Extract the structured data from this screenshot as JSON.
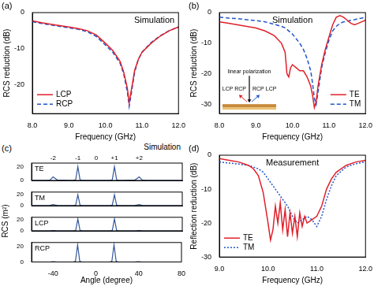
{
  "chart_data": [
    {
      "panel": "(a)",
      "title": "Simulation",
      "type": "line",
      "xlabel": "Frequency (GHz)",
      "ylabel": "RCS reduction (dB)",
      "x": [
        8.0,
        8.25,
        8.5,
        8.75,
        9.0,
        9.25,
        9.5,
        9.75,
        10.0,
        10.2,
        10.4,
        10.5,
        10.6,
        10.65,
        10.7,
        10.8,
        10.9,
        11.0,
        11.25,
        11.5,
        11.75,
        12.0
      ],
      "series": [
        {
          "name": "LCP",
          "color": "#e0202a",
          "line_style": "solid",
          "values": [
            -2.3,
            -2.8,
            -3.2,
            -3.6,
            -4.0,
            -4.4,
            -5.0,
            -6.2,
            -8.5,
            -10.5,
            -13.5,
            -16.5,
            -21,
            -25,
            -22,
            -16,
            -13,
            -11,
            -8.5,
            -6.5,
            -5,
            -4
          ]
        },
        {
          "name": "RCP",
          "color": "#2255cc",
          "line_style": "dashed",
          "values": [
            -2.5,
            -3,
            -3.4,
            -3.8,
            -4.2,
            -4.6,
            -5.3,
            -6.6,
            -9,
            -11,
            -14,
            -17,
            -22,
            -26,
            -23,
            -16.5,
            -13,
            -11,
            -8.3,
            -6.4,
            -5,
            -4
          ]
        }
      ],
      "xlim": [
        8,
        12
      ],
      "xticks": [
        {
          "value": 8,
          "label": "8.0"
        },
        {
          "value": 9,
          "label": "9.0"
        },
        {
          "value": 10,
          "label": "10.0"
        },
        {
          "value": 11,
          "label": "11.0"
        },
        {
          "value": 12,
          "label": "12.0"
        }
      ],
      "ylim": [
        -28,
        0
      ],
      "yticks": [
        -20,
        -10,
        0
      ],
      "grid": false,
      "legend": "lower left"
    },
    {
      "panel": "(b)",
      "title": "Simulation",
      "type": "line",
      "xlabel": "Frequency (GHz)",
      "ylabel": "RCS reduction (dB)",
      "x": [
        8.0,
        8.25,
        8.5,
        8.75,
        9.0,
        9.25,
        9.5,
        9.7,
        9.8,
        9.85,
        9.9,
        9.95,
        10.0,
        10.1,
        10.2,
        10.3,
        10.4,
        10.5,
        10.55,
        10.6,
        10.65,
        10.7,
        10.8,
        10.9,
        11.0,
        11.1,
        11.2,
        11.3,
        11.4,
        11.5,
        11.6,
        11.7,
        11.8,
        11.9,
        12.0
      ],
      "series": [
        {
          "name": "TE",
          "color": "#e0202a",
          "line_style": "solid",
          "values": [
            -3,
            -3.5,
            -4,
            -4.5,
            -5,
            -6,
            -7.5,
            -10,
            -13,
            -20,
            -21,
            -18,
            -17,
            -18,
            -19,
            -19,
            -21,
            -24,
            -27,
            -31,
            -29,
            -24,
            -17,
            -12,
            -8,
            -4,
            -1.5,
            -1,
            -1.5,
            -2.5,
            -3.5,
            -4,
            -3.5,
            -3,
            -2.5
          ]
        },
        {
          "name": "TM",
          "color": "#2255cc",
          "line_style": "dashed",
          "values": [
            -1.5,
            -1.8,
            -2,
            -2.3,
            -2.6,
            -3,
            -3.8,
            -4.5,
            -5,
            -5.5,
            -6,
            -6.5,
            -7,
            -8.5,
            -10,
            -12,
            -15,
            -19,
            -23,
            -28,
            -30,
            -26,
            -18,
            -13,
            -9,
            -6,
            -4.5,
            -3.5,
            -3,
            -2.8,
            -2.5,
            -2.3,
            -2,
            -1.8,
            -1.5
          ]
        }
      ],
      "xlim": [
        8,
        12
      ],
      "xticks": [
        {
          "value": 8,
          "label": "8.0"
        },
        {
          "value": 9,
          "label": "9.0"
        },
        {
          "value": 10,
          "label": "10.0"
        },
        {
          "value": 11,
          "label": "11.0"
        },
        {
          "value": 12,
          "label": "12.0"
        }
      ],
      "ylim": [
        -33,
        0
      ],
      "yticks": [
        -30,
        -20,
        -10,
        0
      ],
      "grid": false,
      "legend": "lower right",
      "annotations": [
        "linear polarization",
        "LCP RCP",
        "RCP LCP"
      ]
    },
    {
      "panel": "(c)",
      "title": "Simulation",
      "type": "line",
      "xlabel": "Angle (degree)",
      "ylabel": "RCS (m²)",
      "x": [
        -60,
        -50,
        -46,
        -43,
        -40,
        -36,
        -25,
        -21,
        -19,
        -17,
        -15,
        -13,
        -5,
        0,
        5,
        13,
        15,
        17,
        19,
        21,
        25,
        36,
        40,
        43,
        46,
        50,
        60,
        70,
        80
      ],
      "xlim": [
        -60,
        80
      ],
      "xticks": [
        -40,
        0,
        40,
        80
      ],
      "grid": false,
      "subplots": [
        {
          "label": "TE",
          "color": "#34589a",
          "ylim": [
            0,
            25
          ],
          "yticks": [
            0,
            20
          ],
          "tick_labels": "y",
          "values": [
            0,
            0,
            0,
            0.5,
            5,
            0.5,
            0,
            0,
            1,
            20,
            1,
            0,
            0,
            0,
            0,
            0,
            1,
            20,
            1,
            0,
            0,
            0.5,
            5,
            0.5,
            0,
            0,
            0,
            0,
            0
          ],
          "annotations": [
            {
              "text": "-2",
              "x": -40
            },
            {
              "text": "-1",
              "x": -17
            },
            {
              "text": "0",
              "x": 0
            },
            {
              "text": "+1",
              "x": 17
            },
            {
              "text": "+2",
              "x": 40
            }
          ]
        },
        {
          "label": "TM",
          "color": "#34589a",
          "ylim": [
            0,
            25
          ],
          "yticks": [
            0,
            20
          ],
          "tick_labels": "y",
          "values": [
            0,
            0,
            0,
            0.3,
            2,
            0.3,
            0,
            0,
            1,
            20,
            1,
            0,
            0,
            0,
            0,
            0,
            1,
            20,
            1,
            0,
            0,
            0.3,
            2,
            0.3,
            0,
            0,
            0,
            0,
            0
          ]
        },
        {
          "label": "LCP",
          "color": "#34589a",
          "ylim": [
            0,
            25
          ],
          "yticks": [
            0,
            20
          ],
          "tick_labels": "y",
          "values": [
            0,
            0,
            0,
            0,
            0.5,
            0,
            0,
            0,
            1,
            22,
            1,
            0,
            0,
            0,
            0,
            0,
            1,
            22,
            1,
            0,
            0,
            0,
            0.5,
            0,
            0,
            0,
            0,
            0,
            0
          ]
        },
        {
          "label": "RCP",
          "color": "#34589a",
          "ylim": [
            0,
            25
          ],
          "yticks": [
            0,
            20
          ],
          "values": [
            0,
            0,
            0,
            0,
            0.5,
            0,
            0,
            0,
            1,
            22,
            1,
            0,
            0,
            0,
            0,
            0,
            1,
            22,
            1,
            0,
            0,
            0,
            0.5,
            0,
            0,
            0,
            0,
            0,
            0
          ]
        }
      ]
    },
    {
      "panel": "(d)",
      "title": "Measurement",
      "type": "line",
      "xlabel": "Frequency (GHz)",
      "ylabel": "Reflection reduction (dB)",
      "x": [
        9.0,
        9.2,
        9.4,
        9.6,
        9.7,
        9.8,
        9.9,
        10.0,
        10.05,
        10.1,
        10.15,
        10.2,
        10.25,
        10.3,
        10.35,
        10.4,
        10.45,
        10.5,
        10.55,
        10.6,
        10.65,
        10.7,
        10.75,
        10.8,
        10.9,
        11.0,
        11.1,
        11.2,
        11.3,
        11.4,
        11.6,
        11.8,
        12.0
      ],
      "series": [
        {
          "name": "TE",
          "color": "#e0202a",
          "line_style": "solid",
          "values": [
            -1,
            -1.5,
            -2,
            -3,
            -4,
            -6,
            -11,
            -20,
            -25,
            -22,
            -15,
            -20,
            -14,
            -22,
            -16,
            -24,
            -17,
            -23,
            -18,
            -24,
            -17,
            -21,
            -18,
            -20,
            -19,
            -18,
            -15,
            -10,
            -7,
            -5,
            -3,
            -2,
            -1.5
          ]
        },
        {
          "name": "TM",
          "color": "#2255cc",
          "line_style": "dotted",
          "values": [
            -2,
            -2.3,
            -2.6,
            -3,
            -3.5,
            -4,
            -5,
            -7,
            -8,
            -9,
            -10,
            -11,
            -12,
            -13,
            -14,
            -15,
            -16.5,
            -18,
            -19,
            -20,
            -19.5,
            -19,
            -18.5,
            -18,
            -19,
            -21,
            -18,
            -13,
            -9,
            -6,
            -3.5,
            -2.5,
            -2
          ]
        }
      ],
      "xlim": [
        9,
        12
      ],
      "xticks": [
        {
          "value": 9,
          "label": "9.0"
        },
        {
          "value": 10,
          "label": "10.0"
        },
        {
          "value": 11,
          "label": "11.0"
        },
        {
          "value": 12,
          "label": "12.0"
        }
      ],
      "ylim": [
        -30,
        0
      ],
      "yticks": [
        -30,
        -20,
        -10,
        0
      ],
      "grid": false,
      "legend": "lower left"
    }
  ]
}
